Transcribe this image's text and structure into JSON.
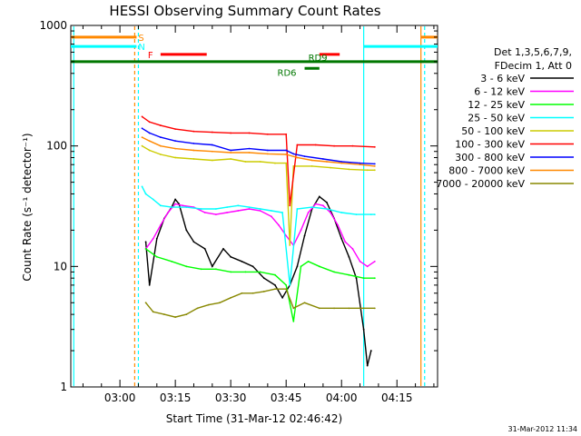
{
  "chart_data": {
    "type": "line",
    "title": "HESSI Observing Summary Count Rates",
    "xlabel": "Start Time (31-Mar-12 02:46:42)",
    "ylabel": "Count Rate (s⁻¹ detector⁻¹)",
    "y_scale": "log",
    "ylim": [
      1,
      1000
    ],
    "xlim": [
      "02:46:42",
      "04:26:00"
    ],
    "x_ticks": [
      "03:00",
      "03:15",
      "03:30",
      "03:45",
      "04:00",
      "04:15"
    ],
    "y_ticks": [
      "1",
      "10",
      "100",
      "1000"
    ],
    "legend_position": "right",
    "legend_header": [
      "Det 1,3,5,6,7,9,",
      "FDecim 1, Att 0"
    ],
    "timestamp": "31-Mar-2012 11:34",
    "series": [
      {
        "name": "3 - 6 keV",
        "color": "#000000",
        "points": [
          [
            "03:07",
            16
          ],
          [
            "03:08",
            7
          ],
          [
            "03:10",
            17
          ],
          [
            "03:12",
            25
          ],
          [
            "03:14",
            31
          ],
          [
            "03:15",
            36
          ],
          [
            "03:16",
            33
          ],
          [
            "03:18",
            20
          ],
          [
            "03:20",
            16
          ],
          [
            "03:23",
            14
          ],
          [
            "03:25",
            10
          ],
          [
            "03:28",
            14
          ],
          [
            "03:30",
            12
          ],
          [
            "03:33",
            11
          ],
          [
            "03:36",
            10
          ],
          [
            "03:39",
            8
          ],
          [
            "03:42",
            7
          ],
          [
            "03:44",
            5.5
          ],
          [
            "03:46",
            7
          ],
          [
            "03:48",
            10
          ],
          [
            "03:50",
            18
          ],
          [
            "03:52",
            30
          ],
          [
            "03:54",
            38
          ],
          [
            "03:56",
            34
          ],
          [
            "03:58",
            25
          ],
          [
            "04:00",
            17
          ],
          [
            "04:02",
            12
          ],
          [
            "04:04",
            8
          ],
          [
            "04:06",
            3
          ],
          [
            "04:07",
            1.5
          ],
          [
            "04:08",
            2
          ]
        ]
      },
      {
        "name": "6 - 12 keV",
        "color": "#ff00ff",
        "points": [
          [
            "03:07",
            14
          ],
          [
            "03:09",
            17
          ],
          [
            "03:11",
            22
          ],
          [
            "03:13",
            28
          ],
          [
            "03:15",
            33
          ],
          [
            "03:17",
            32
          ],
          [
            "03:20",
            31
          ],
          [
            "03:23",
            28
          ],
          [
            "03:26",
            27
          ],
          [
            "03:29",
            28
          ],
          [
            "03:32",
            29
          ],
          [
            "03:35",
            30
          ],
          [
            "03:38",
            29
          ],
          [
            "03:41",
            26
          ],
          [
            "03:43",
            22
          ],
          [
            "03:45",
            18
          ],
          [
            "03:47",
            15
          ],
          [
            "03:49",
            20
          ],
          [
            "03:51",
            28
          ],
          [
            "03:53",
            33
          ],
          [
            "03:55",
            32
          ],
          [
            "03:57",
            28
          ],
          [
            "03:59",
            22
          ],
          [
            "04:01",
            16
          ],
          [
            "04:03",
            14
          ],
          [
            "04:05",
            11
          ],
          [
            "04:07",
            10
          ],
          [
            "04:09",
            11
          ]
        ]
      },
      {
        "name": "12 - 25 keV",
        "color": "#00ff00",
        "points": [
          [
            "03:07",
            14
          ],
          [
            "03:10",
            12
          ],
          [
            "03:14",
            11
          ],
          [
            "03:18",
            10
          ],
          [
            "03:22",
            9.5
          ],
          [
            "03:26",
            9.5
          ],
          [
            "03:30",
            9
          ],
          [
            "03:34",
            9
          ],
          [
            "03:38",
            9
          ],
          [
            "03:42",
            8.5
          ],
          [
            "03:45",
            7
          ],
          [
            "03:47",
            3.5
          ],
          [
            "03:49",
            10
          ],
          [
            "03:51",
            11
          ],
          [
            "03:54",
            10
          ],
          [
            "03:58",
            9
          ],
          [
            "04:02",
            8.5
          ],
          [
            "04:06",
            8
          ],
          [
            "04:09",
            8
          ]
        ]
      },
      {
        "name": "25 - 50 keV",
        "color": "#00ffff",
        "points": [
          [
            "03:06",
            46
          ],
          [
            "03:07",
            40
          ],
          [
            "03:09",
            36
          ],
          [
            "03:11",
            32
          ],
          [
            "03:14",
            31
          ],
          [
            "03:18",
            31
          ],
          [
            "03:22",
            30
          ],
          [
            "03:26",
            30
          ],
          [
            "03:29",
            31
          ],
          [
            "03:32",
            32
          ],
          [
            "03:35",
            31
          ],
          [
            "03:38",
            30
          ],
          [
            "03:41",
            29
          ],
          [
            "03:44",
            28
          ],
          [
            "03:46",
            7
          ],
          [
            "03:48",
            30
          ],
          [
            "03:52",
            31
          ],
          [
            "03:56",
            30
          ],
          [
            "04:00",
            28
          ],
          [
            "04:04",
            27
          ],
          [
            "04:08",
            27
          ],
          [
            "04:09",
            27
          ]
        ]
      },
      {
        "name": "50 - 100 keV",
        "color": "#cccc00",
        "points": [
          [
            "03:06",
            100
          ],
          [
            "03:08",
            92
          ],
          [
            "03:11",
            85
          ],
          [
            "03:15",
            80
          ],
          [
            "03:20",
            78
          ],
          [
            "03:25",
            76
          ],
          [
            "03:30",
            78
          ],
          [
            "03:34",
            74
          ],
          [
            "03:38",
            74
          ],
          [
            "03:42",
            72
          ],
          [
            "03:45",
            72
          ],
          [
            "03:46",
            15
          ],
          [
            "03:47",
            68
          ],
          [
            "03:52",
            68
          ],
          [
            "03:57",
            66
          ],
          [
            "04:02",
            64
          ],
          [
            "04:07",
            63
          ],
          [
            "04:09",
            63
          ]
        ]
      },
      {
        "name": "100 - 300 keV",
        "color": "#ff0000",
        "points": [
          [
            "03:06",
            175
          ],
          [
            "03:08",
            158
          ],
          [
            "03:11",
            148
          ],
          [
            "03:15",
            138
          ],
          [
            "03:20",
            132
          ],
          [
            "03:25",
            130
          ],
          [
            "03:30",
            128
          ],
          [
            "03:35",
            128
          ],
          [
            "03:40",
            125
          ],
          [
            "03:45",
            125
          ],
          [
            "03:46",
            32
          ],
          [
            "03:48",
            102
          ],
          [
            "03:53",
            102
          ],
          [
            "03:58",
            100
          ],
          [
            "04:03",
            100
          ],
          [
            "04:09",
            98
          ]
        ]
      },
      {
        "name": "300 - 800 keV",
        "color": "#0000ff",
        "points": [
          [
            "03:06",
            140
          ],
          [
            "03:08",
            128
          ],
          [
            "03:11",
            118
          ],
          [
            "03:15",
            110
          ],
          [
            "03:20",
            105
          ],
          [
            "03:25",
            102
          ],
          [
            "03:30",
            92
          ],
          [
            "03:35",
            95
          ],
          [
            "03:40",
            92
          ],
          [
            "03:45",
            92
          ],
          [
            "03:47",
            86
          ],
          [
            "03:50",
            82
          ],
          [
            "03:55",
            78
          ],
          [
            "04:00",
            74
          ],
          [
            "04:05",
            72
          ],
          [
            "04:09",
            71
          ]
        ]
      },
      {
        "name": "800 - 7000 keV",
        "color": "#ff8800",
        "points": [
          [
            "03:06",
            118
          ],
          [
            "03:08",
            110
          ],
          [
            "03:11",
            100
          ],
          [
            "03:15",
            95
          ],
          [
            "03:20",
            92
          ],
          [
            "03:25",
            90
          ],
          [
            "03:30",
            88
          ],
          [
            "03:35",
            88
          ],
          [
            "03:40",
            86
          ],
          [
            "03:45",
            85
          ],
          [
            "03:48",
            80
          ],
          [
            "03:52",
            76
          ],
          [
            "03:56",
            74
          ],
          [
            "04:00",
            72
          ],
          [
            "04:05",
            70
          ],
          [
            "04:09",
            68
          ]
        ]
      },
      {
        "name": "7000 - 20000 keV",
        "color": "#888800",
        "points": [
          [
            "03:07",
            5
          ],
          [
            "03:09",
            4.2
          ],
          [
            "03:12",
            4
          ],
          [
            "03:15",
            3.8
          ],
          [
            "03:18",
            4
          ],
          [
            "03:21",
            4.5
          ],
          [
            "03:24",
            4.8
          ],
          [
            "03:27",
            5
          ],
          [
            "03:30",
            5.5
          ],
          [
            "03:33",
            6
          ],
          [
            "03:36",
            6
          ],
          [
            "03:39",
            6.2
          ],
          [
            "03:42",
            6.5
          ],
          [
            "03:45",
            6.5
          ],
          [
            "03:47",
            4.5
          ],
          [
            "03:50",
            5
          ],
          [
            "03:54",
            4.5
          ],
          [
            "03:58",
            4.5
          ],
          [
            "04:02",
            4.5
          ],
          [
            "04:06",
            4.5
          ],
          [
            "04:09",
            4.5
          ]
        ]
      }
    ],
    "flags": [
      {
        "label": "S",
        "color": "#ff8800",
        "value": 800,
        "segments": [
          [
            "02:46:42",
            "03:04:30"
          ],
          [
            "04:21:30",
            "04:26:00"
          ]
        ]
      },
      {
        "label": "N",
        "color": "#00ffff",
        "value": 670,
        "segments": [
          [
            "02:46:42",
            "03:04:30"
          ],
          [
            "04:06:00",
            "04:26:00"
          ]
        ]
      },
      {
        "label": "F",
        "color": "#ff0000",
        "value": 575,
        "segments": [
          [
            "03:11:00",
            "03:23:30"
          ],
          [
            "03:54:00",
            "03:59:30"
          ]
        ]
      },
      {
        "label": "RD6",
        "color": "#007700",
        "value": 440,
        "segments": [
          [
            "03:50:00",
            "03:54:00"
          ]
        ]
      },
      {
        "label": "RD9",
        "color": "#007700",
        "value": 500,
        "segments": [
          [
            "02:46:42",
            "04:26:00"
          ]
        ]
      }
    ],
    "boundaries": [
      {
        "time": "03:04:00",
        "color": "#ff8800",
        "dashed": true
      },
      {
        "time": "03:05:00",
        "color": "#00ffff",
        "dashed": true
      },
      {
        "time": "04:06:00",
        "color": "#00ffff",
        "dashed": false
      },
      {
        "time": "04:21:30",
        "color": "#ff8800",
        "dashed": false
      },
      {
        "time": "04:22:30",
        "color": "#00ffff",
        "dashed": true
      },
      {
        "time": "02:47:30",
        "color": "#00ffff",
        "dashed": false
      }
    ]
  }
}
